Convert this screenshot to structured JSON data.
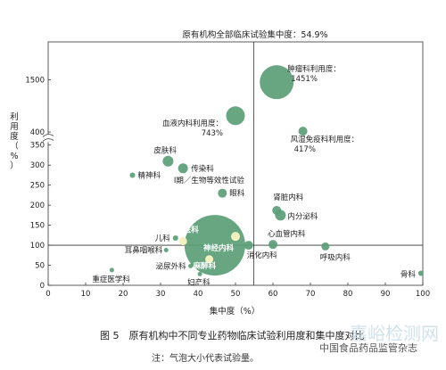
{
  "chart_data": {
    "type": "scatter",
    "subtype": "bubble",
    "title": "原有机构全部临床试验集中度：54.9%",
    "xlabel": "集中度（%）",
    "ylabel": "利用度（%）",
    "xlim": [
      0,
      100
    ],
    "x_ticks": [
      "0",
      "10",
      "20",
      "30",
      "40",
      "50",
      "60",
      "70",
      "80",
      "90",
      "100"
    ],
    "y_ticks_lower": [
      "0",
      "50",
      "100",
      "150",
      "200",
      "250",
      "300",
      "350"
    ],
    "y_ticks_upper": [
      "400",
      "1500"
    ],
    "y_axis_break": true,
    "reference_lines": {
      "x": 54.9,
      "y": 100
    },
    "bubble_color": "#5a9e76",
    "highlight_color": "#f4f1c0",
    "points": [
      {
        "label": "肿瘤科利用度：1451%",
        "x": 61,
        "y": 1451
      },
      {
        "label": "血液内科利用度：743%",
        "x": 50,
        "y": 743
      },
      {
        "label": "风湿免疫科利用度：417%",
        "x": 68,
        "y": 417
      },
      {
        "label": "皮肤科",
        "x": 32,
        "y": 310
      },
      {
        "label": "传染科",
        "x": 36,
        "y": 292
      },
      {
        "label": "精神科",
        "x": 22.5,
        "y": 275
      },
      {
        "label": "眼科",
        "x": 46.5,
        "y": 230
      },
      {
        "label": "肾脏内科",
        "x": 61,
        "y": 187
      },
      {
        "label": "内分泌科",
        "x": 62,
        "y": 175
      },
      {
        "label": "Ⅰ期／生物等效性试验",
        "x": 44.5,
        "y": 100
      },
      {
        "label": "中医科",
        "x": 36,
        "y": 110
      },
      {
        "label": "神经内科",
        "x": 50,
        "y": 122
      },
      {
        "label": "麻醉科",
        "x": 43,
        "y": 65
      },
      {
        "label": "儿科",
        "x": 34,
        "y": 118
      },
      {
        "label": "心血管内科",
        "x": 60,
        "y": 102
      },
      {
        "label": "消化内科",
        "x": 53.5,
        "y": 100
      },
      {
        "label": "耳鼻咽喉科",
        "x": 31.5,
        "y": 88
      },
      {
        "label": "呼吸内科",
        "x": 74,
        "y": 97
      },
      {
        "label": "泌尿外科",
        "x": 38,
        "y": 48
      },
      {
        "label": "重症医学科",
        "x": 17,
        "y": 38
      },
      {
        "label": "妇产科",
        "x": 40.5,
        "y": 28
      },
      {
        "label": "骨科",
        "x": 99.5,
        "y": 30
      }
    ]
  },
  "figure": {
    "caption": "图 5　原有机构中不同专业药物临床试验利用度和集中度对比",
    "note": "注：气泡大小代表试验量。"
  },
  "watermark": {
    "brand": "嘉峪检测网",
    "source": "中国食品药品监管杂志"
  }
}
